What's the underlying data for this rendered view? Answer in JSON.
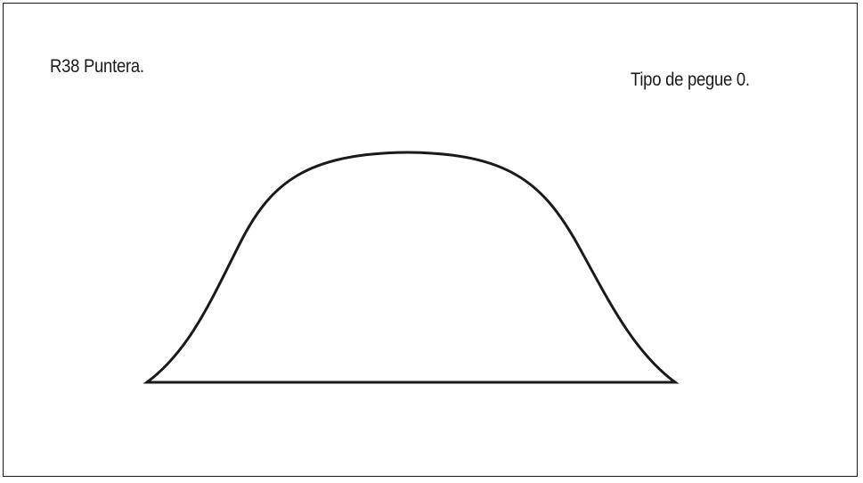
{
  "diagram": {
    "piece_label": "R38 Puntera.",
    "attachment_label": "Tipo de pegue 0.",
    "stroke_color": "#1a1a1a",
    "background_color": "#ffffff",
    "shape": "toe-cap-pattern-piece"
  }
}
